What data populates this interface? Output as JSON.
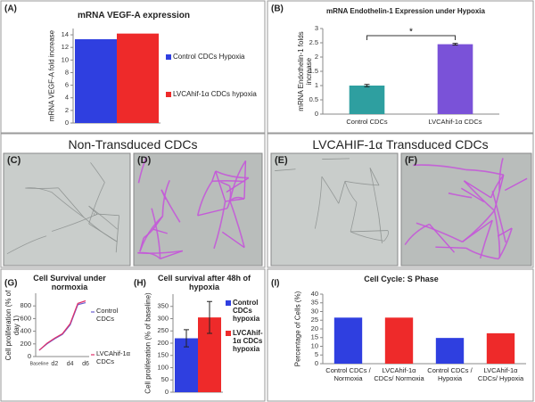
{
  "chart_data": [
    {
      "type": "bar",
      "panel": "(A)",
      "title": "mRNA VEGF-A expression",
      "y_label": "mRNA VEGF-A fold increase",
      "series": [
        {
          "name": "Control CDCs Hypoxia",
          "color": "#2f3fe0",
          "values": [
            13.3
          ]
        },
        {
          "name": "LVCAhif-1α CDCs hypoxia",
          "color": "#ee2a2a",
          "values": [
            14.2
          ]
        }
      ],
      "ylim": [
        0,
        15
      ],
      "yticks": [
        0,
        2,
        4,
        6,
        8,
        10,
        12,
        14
      ],
      "grid": false
    },
    {
      "type": "bar",
      "panel": "(B)",
      "title": "mRNA Endothelin-1 Expression under Hypoxia",
      "y_label": "mRNA Endothelin-1 folds increase",
      "categories": [
        "Control CDCs",
        "LVCAhif-1α CDCs"
      ],
      "values": [
        1.0,
        2.45
      ],
      "errors": [
        0.04,
        0.03
      ],
      "colors": [
        "#2e9fa0",
        "#7a52d8"
      ],
      "annotation": "*",
      "ylim": [
        0,
        3
      ],
      "yticks": [
        0,
        0.5,
        1,
        1.5,
        2,
        2.5,
        3
      ],
      "grid": false
    },
    {
      "type": "line",
      "panel": "(G)",
      "title": "Cell Survival under normoxia",
      "y_label": "Cell proliferation (% of day 1)",
      "categories": [
        "Baseline",
        null,
        "d2",
        null,
        "d4",
        null,
        "d6"
      ],
      "series": [
        {
          "name": "Control CDCs",
          "color": "#6a5ccf",
          "values": [
            100,
            200,
            280,
            350,
            500,
            820,
            850
          ]
        },
        {
          "name": "LVCAhif-1α CDCs",
          "color": "#e0306a",
          "values": [
            100,
            210,
            290,
            360,
            520,
            840,
            880
          ]
        }
      ],
      "ylim": [
        0,
        1000
      ],
      "yticks": [
        0,
        200,
        400,
        600,
        800
      ],
      "grid": false
    },
    {
      "type": "bar",
      "panel": "(H)",
      "title": "Cell survival after 48h of hypoxia",
      "y_label": "Cell proliferation (% of baseline)",
      "series": [
        {
          "name": "Control CDCs hypoxia",
          "color": "#2f3fe0",
          "values": [
            220
          ],
          "errors": [
            35
          ]
        },
        {
          "name": "LVCAhif-1α CDCs hypoxia",
          "color": "#ee2a2a",
          "values": [
            305
          ],
          "errors": [
            65
          ]
        }
      ],
      "ylim": [
        0,
        400
      ],
      "yticks": [
        0,
        50,
        100,
        150,
        200,
        250,
        300,
        350
      ],
      "grid": false
    },
    {
      "type": "bar",
      "panel": "(I)",
      "title": "Cell Cycle: S Phase",
      "y_label": "Percentage of Cells (%)",
      "categories": [
        "Control CDCs / Normoxia",
        "LVCAhif-1α CDCs/ Normoxia",
        "Control CDCs / Hypoxia",
        "LVCAhif-1α CDCs/ Hypoxia"
      ],
      "values": [
        26.5,
        26.5,
        14.8,
        17.5
      ],
      "colors": [
        "#2f3fe0",
        "#ee2a2a",
        "#2f3fe0",
        "#ee2a2a"
      ],
      "ylim": [
        0,
        40
      ],
      "yticks": [
        0,
        5,
        10,
        15,
        20,
        25,
        30,
        35,
        40
      ],
      "grid": false
    }
  ],
  "image_panels": {
    "headings": [
      "Non-Transduced CDCs",
      "LVCAHIF-1α  Transduced CDCs"
    ],
    "labels": [
      "(C)",
      "(D)",
      "(E)",
      "(F)"
    ]
  }
}
